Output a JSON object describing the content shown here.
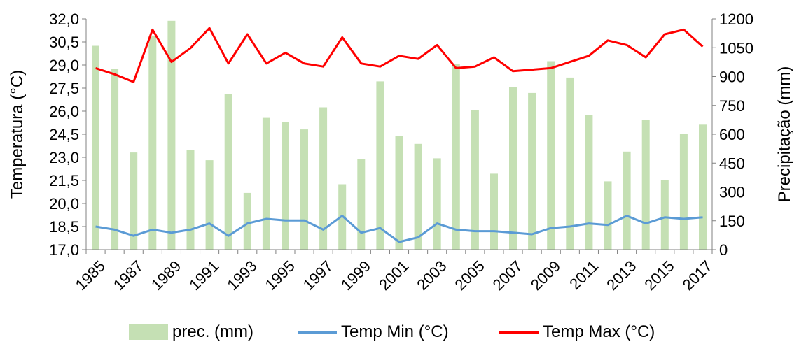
{
  "chart_data": {
    "type": "bar+line",
    "x": [
      "1985",
      "1986",
      "1987",
      "1988",
      "1989",
      "1990",
      "1991",
      "1992",
      "1993",
      "1994",
      "1995",
      "1996",
      "1997",
      "1998",
      "1999",
      "2000",
      "2001",
      "2002",
      "2003",
      "2004",
      "2005",
      "2006",
      "2007",
      "2008",
      "2009",
      "2010",
      "2011",
      "2012",
      "2013",
      "2014",
      "2015",
      "2016",
      "2017"
    ],
    "x_tick_labels": [
      "1985",
      "1987",
      "1989",
      "1991",
      "1993",
      "1995",
      "1997",
      "1999",
      "2001",
      "2003",
      "2005",
      "2007",
      "2009",
      "2011",
      "2013",
      "2015",
      "2017"
    ],
    "y_left": {
      "label": "Temperatura (°C)",
      "range": [
        17.0,
        32.0
      ],
      "tick_labels": [
        "17,0",
        "18,5",
        "20,0",
        "21,5",
        "23,0",
        "24,5",
        "26,0",
        "27,5",
        "29,0",
        "30,5",
        "32,0"
      ]
    },
    "y_right": {
      "label": "Precipitação (mm)",
      "range": [
        0,
        1200
      ],
      "tick_labels": [
        "0",
        "150",
        "300",
        "450",
        "600",
        "750",
        "900",
        "1050",
        "1200"
      ]
    },
    "series": [
      {
        "name": "prec. (mm)",
        "type": "bar",
        "axis": "right",
        "color": "#c5e0b4",
        "values": [
          1060,
          940,
          505,
          1110,
          1190,
          520,
          465,
          810,
          295,
          685,
          665,
          625,
          740,
          340,
          470,
          875,
          590,
          550,
          475,
          965,
          725,
          395,
          845,
          815,
          980,
          895,
          700,
          355,
          510,
          675,
          360,
          600,
          650
        ]
      },
      {
        "name": "Temp Min (°C)",
        "type": "line",
        "axis": "left",
        "color": "#5b9bd5",
        "values": [
          18.5,
          18.3,
          17.9,
          18.3,
          18.1,
          18.3,
          18.7,
          17.9,
          18.7,
          19.0,
          18.9,
          18.9,
          18.3,
          19.2,
          18.1,
          18.4,
          17.5,
          17.8,
          18.7,
          18.3,
          18.2,
          18.2,
          18.1,
          18.0,
          18.4,
          18.5,
          18.7,
          18.6,
          19.2,
          18.7,
          19.1,
          19.0,
          19.1
        ]
      },
      {
        "name": "Temp Max (°C)",
        "type": "line",
        "axis": "left",
        "color": "#ff0000",
        "values": [
          28.8,
          28.4,
          27.9,
          31.3,
          29.2,
          30.1,
          31.4,
          29.1,
          31.0,
          29.1,
          29.8,
          29.1,
          28.9,
          30.8,
          29.1,
          28.9,
          29.6,
          29.4,
          30.3,
          28.8,
          28.9,
          29.5,
          28.6,
          28.7,
          28.8,
          29.2,
          29.6,
          30.6,
          30.3,
          29.5,
          31.0,
          31.3,
          30.2
        ]
      }
    ],
    "legend": {
      "placement": "bottom",
      "entries": [
        "prec. (mm)",
        "Temp Min (°C)",
        "Temp Max (°C)"
      ]
    },
    "grid": false
  }
}
